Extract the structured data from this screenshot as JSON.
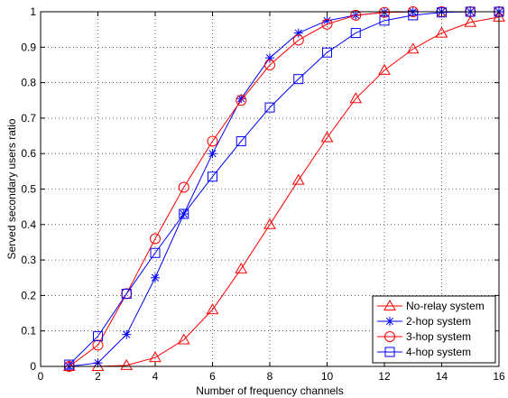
{
  "chart_data": {
    "type": "line",
    "title": "",
    "xlabel": "Number of frequency channels",
    "ylabel": "Served secondary users ratio",
    "xlim": [
      0,
      16
    ],
    "ylim": [
      0,
      1
    ],
    "xticks": [
      0,
      2,
      4,
      6,
      8,
      10,
      12,
      14,
      16
    ],
    "yticks": [
      0,
      0.1,
      0.2,
      0.3,
      0.4,
      0.5,
      0.6,
      0.7,
      0.8,
      0.9,
      1
    ],
    "grid": true,
    "legend_position": "bottom-right",
    "x": [
      1,
      2,
      3,
      4,
      5,
      6,
      7,
      8,
      9,
      10,
      11,
      12,
      13,
      14,
      15,
      16
    ],
    "series": [
      {
        "name": "No-relay system",
        "color": "#ff0000",
        "marker": "triangle",
        "values": [
          0,
          0,
          0.003,
          0.025,
          0.075,
          0.16,
          0.275,
          0.4,
          0.525,
          0.645,
          0.755,
          0.835,
          0.895,
          0.94,
          0.97,
          0.985
        ]
      },
      {
        "name": "2-hop system",
        "color": "#0000ff",
        "marker": "asterisk",
        "values": [
          0,
          0.01,
          0.09,
          0.25,
          0.43,
          0.6,
          0.755,
          0.87,
          0.94,
          0.975,
          0.99,
          0.998,
          1,
          1,
          1,
          1
        ]
      },
      {
        "name": "3-hop system",
        "color": "#ff0000",
        "marker": "circle",
        "values": [
          0,
          0.06,
          0.205,
          0.36,
          0.505,
          0.635,
          0.75,
          0.85,
          0.92,
          0.965,
          0.99,
          0.998,
          1,
          1,
          1,
          1
        ]
      },
      {
        "name": "4-hop system",
        "color": "#0000ff",
        "marker": "square",
        "values": [
          0.005,
          0.085,
          0.205,
          0.32,
          0.43,
          0.535,
          0.635,
          0.73,
          0.81,
          0.885,
          0.94,
          0.975,
          0.99,
          0.998,
          1,
          1
        ]
      }
    ]
  }
}
